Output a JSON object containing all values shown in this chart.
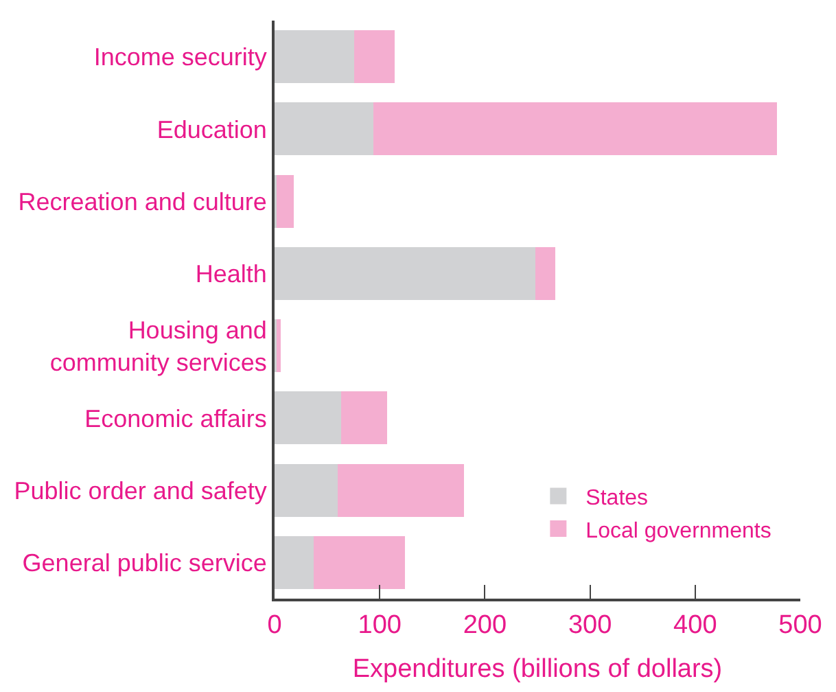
{
  "chart_data": {
    "type": "bar",
    "orientation": "horizontal",
    "stacked": true,
    "categories": [
      "Income security",
      "Education",
      "Recreation and culture",
      "Health",
      "Housing and\ncommunity services",
      "Economic affairs",
      "Public order and safety",
      "General public service"
    ],
    "series": [
      {
        "name": "States",
        "color": "#d1d2d4",
        "values": [
          76,
          94,
          2,
          248,
          2,
          63,
          60,
          37
        ]
      },
      {
        "name": "Local governments",
        "color": "#f4aed0",
        "values": [
          38,
          384,
          16,
          19,
          4,
          44,
          120,
          87
        ]
      }
    ],
    "xlabel": "Expenditures (billions of dollars)",
    "xlim": [
      0,
      500
    ],
    "xticks": [
      0,
      100,
      200,
      300,
      400,
      500
    ],
    "legend": "bottom right"
  }
}
